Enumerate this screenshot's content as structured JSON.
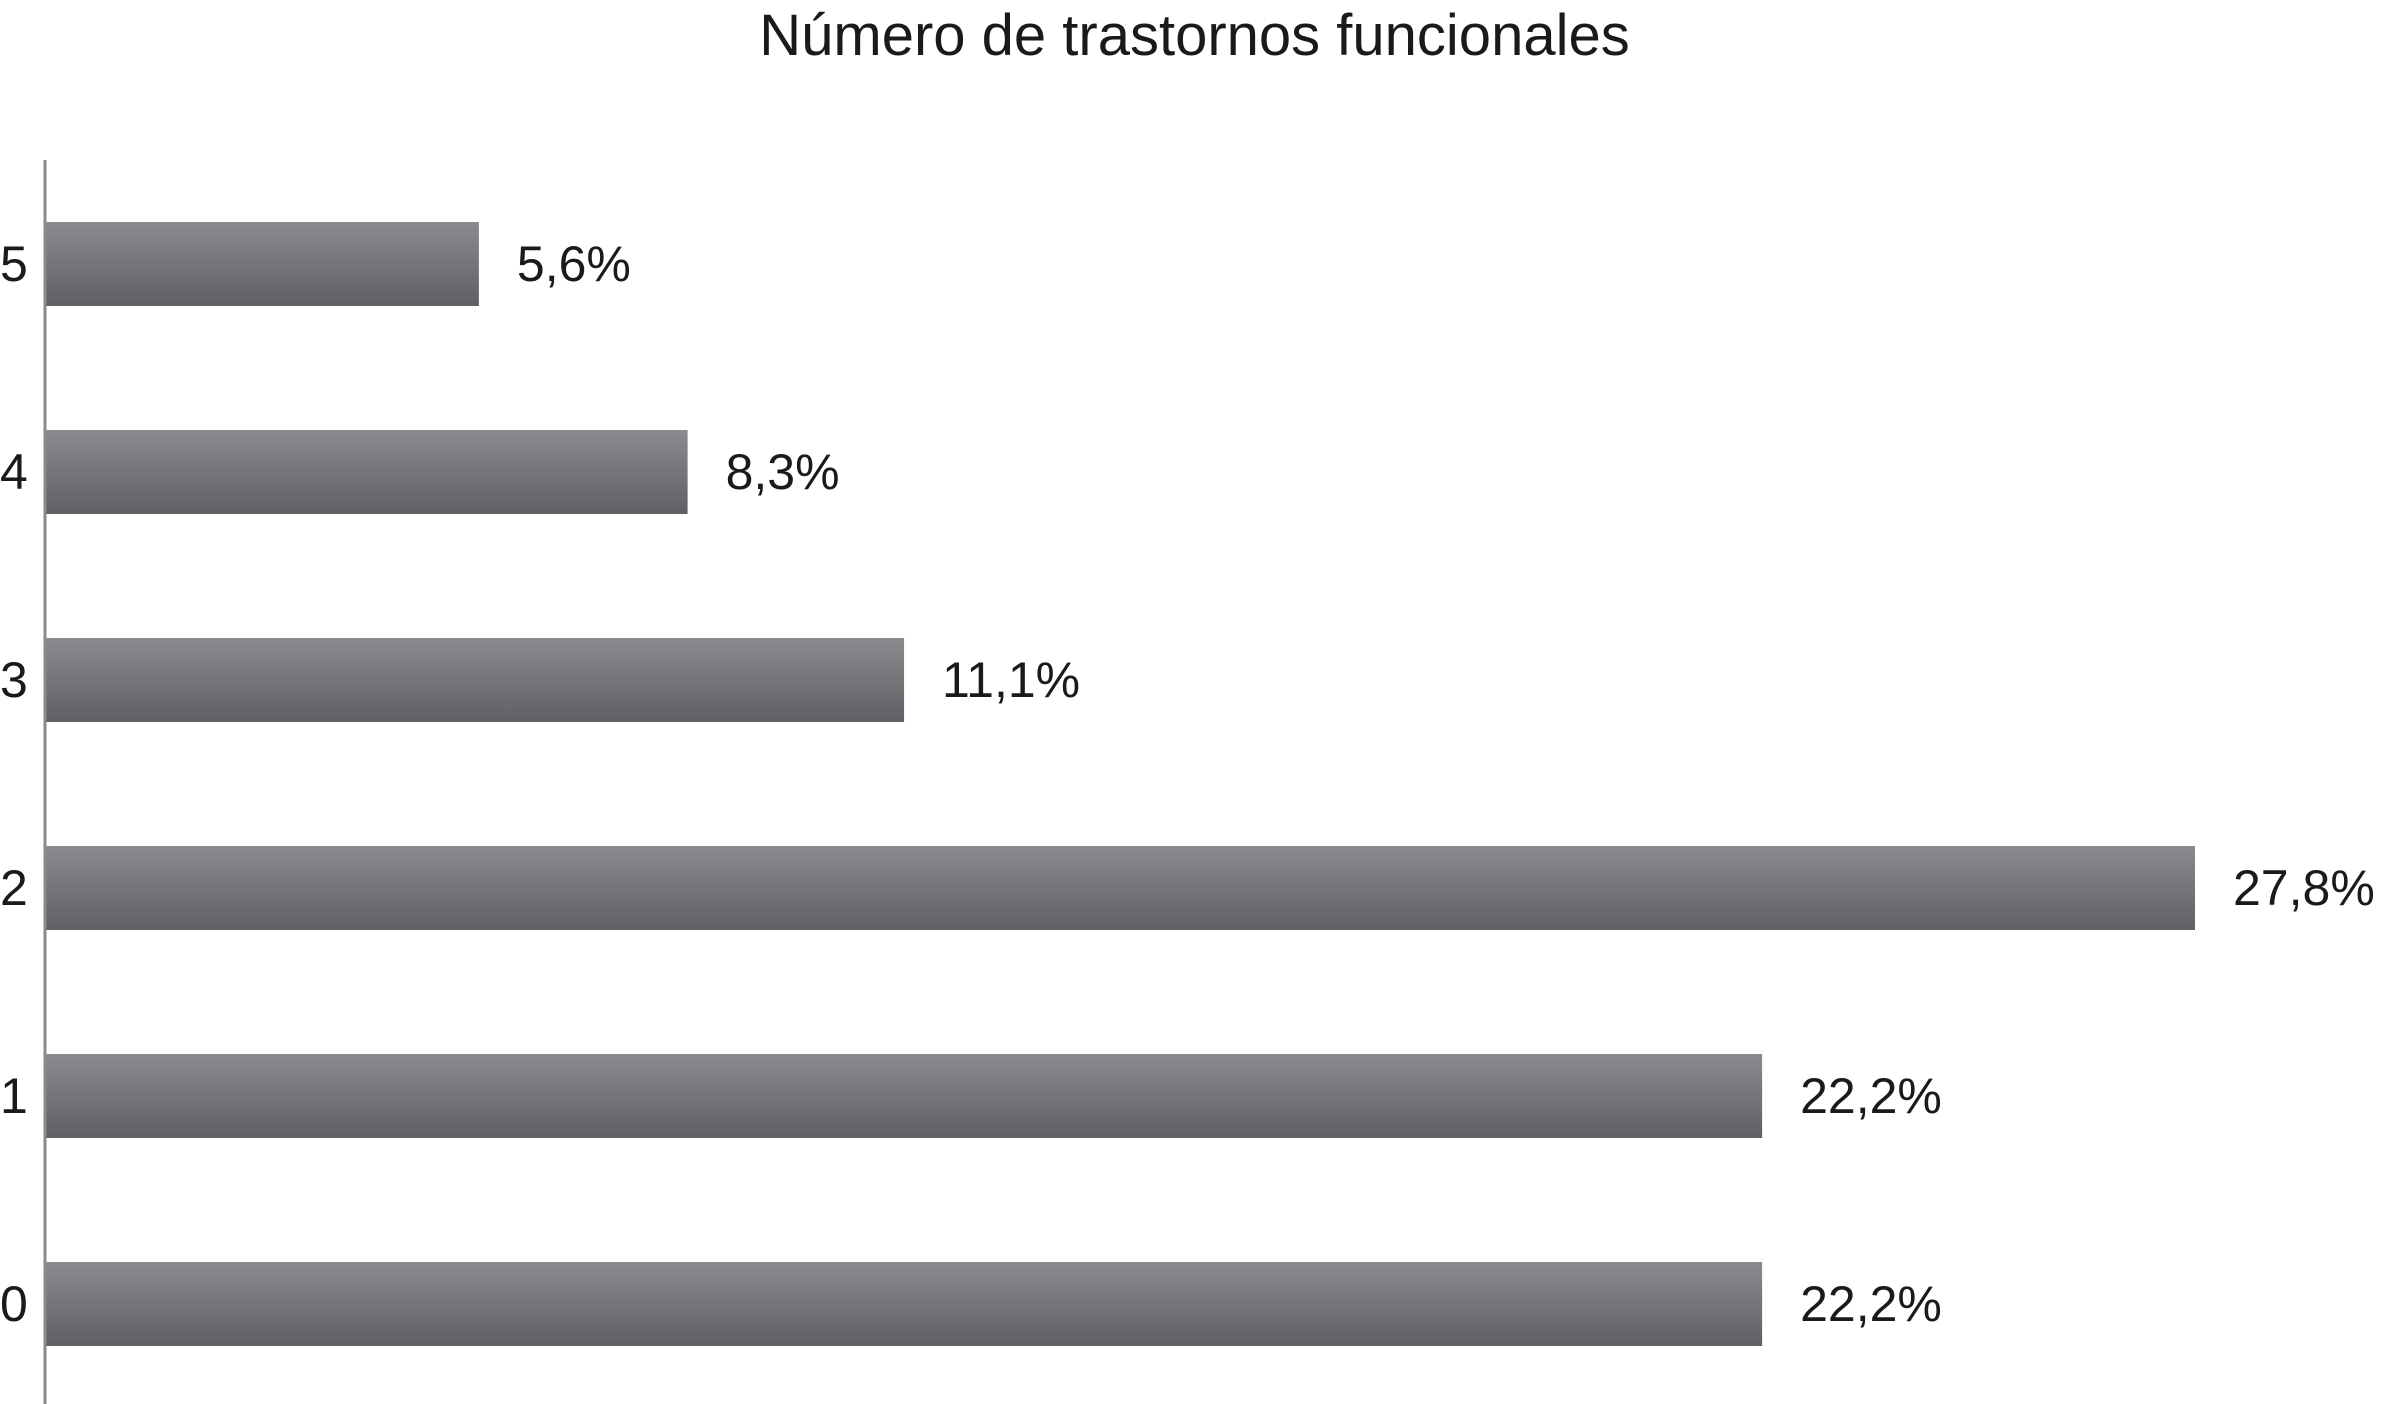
{
  "chart_data": {
    "type": "bar",
    "orientation": "horizontal",
    "title": "Número de trastornos funcionales",
    "xlabel": "",
    "ylabel": "",
    "categories": [
      "5",
      "4",
      "3",
      "2",
      "1",
      "0"
    ],
    "values": [
      5.6,
      8.3,
      11.1,
      27.8,
      22.2,
      22.2
    ],
    "data_labels": [
      "5,6%",
      "8,3%",
      "11,1%",
      "27,8%",
      "22,2%",
      "22,2%"
    ],
    "xlim": [
      0,
      27.8
    ],
    "grid": false,
    "legend": "none",
    "bar_color_top": "#8a8b8f",
    "bar_color_bottom": "#5f6065",
    "axis_color": "#8a8a8a"
  }
}
